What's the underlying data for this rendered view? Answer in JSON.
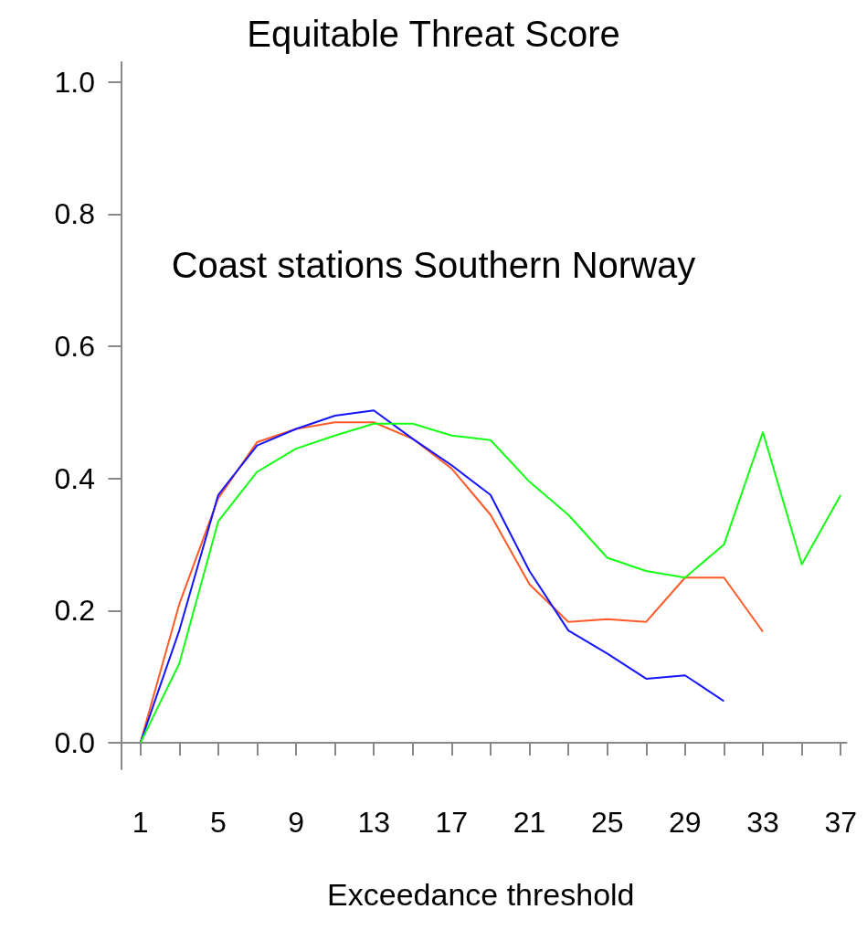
{
  "chart_data": {
    "type": "line",
    "title": "Equitable Threat Score",
    "xlabel": "Exceedance threshold",
    "annotations": [
      "Coast stations Southern Norway"
    ],
    "xlim": [
      -0.3,
      37.3
    ],
    "xticks": [
      1,
      {
        "value": 3,
        "label": null
      },
      5,
      {
        "value": 7,
        "label": null
      },
      9,
      {
        "value": 11,
        "label": null
      },
      13,
      {
        "value": 15,
        "label": null
      },
      17,
      {
        "value": 19,
        "label": null
      },
      21,
      {
        "value": 23,
        "label": null
      },
      25,
      {
        "value": 27,
        "label": null
      },
      29,
      {
        "value": 31,
        "label": null
      },
      33,
      {
        "value": 35,
        "label": null
      },
      37
    ],
    "ylim": [
      -0.04,
      1.03
    ],
    "yticks": [
      {
        "value": 0,
        "label": "0.0"
      },
      0.2,
      0.4,
      0.6,
      0.8,
      {
        "value": 1,
        "label": "1.0"
      }
    ],
    "grid": false,
    "marker": "none",
    "line_style": "solid",
    "series": [
      {
        "color": "#ff5a28",
        "x": [
          1,
          3,
          5,
          7,
          9,
          11,
          13,
          15,
          17,
          19,
          21,
          23,
          25,
          27,
          29,
          31,
          33
        ],
        "values": [
          0,
          0.21,
          0.37,
          0.455,
          0.475,
          0.485,
          0.485,
          0.46,
          0.415,
          0.345,
          0.24,
          0.183,
          0.187,
          0.183,
          0.25,
          0.25,
          0.168
        ]
      },
      {
        "color": "#1414ff",
        "x": [
          1,
          3,
          5,
          7,
          9,
          11,
          13,
          15,
          17,
          19,
          21,
          23,
          25,
          27,
          29,
          31
        ],
        "values": [
          0,
          0.17,
          0.375,
          0.45,
          0.475,
          0.495,
          0.503,
          0.46,
          0.42,
          0.375,
          0.26,
          0.17,
          0.135,
          0.097,
          0.102,
          0.063
        ]
      },
      {
        "color": "#14ff14",
        "x": [
          1,
          3,
          5,
          7,
          9,
          11,
          13,
          15,
          17,
          19,
          21,
          23,
          25,
          27,
          29,
          31,
          33,
          35,
          37
        ],
        "values": [
          0,
          0.12,
          0.335,
          0.41,
          0.445,
          0.465,
          0.483,
          0.483,
          0.465,
          0.458,
          0.395,
          0.345,
          0.28,
          0.26,
          0.25,
          0.3,
          0.47,
          0.27,
          0.375
        ]
      }
    ]
  }
}
